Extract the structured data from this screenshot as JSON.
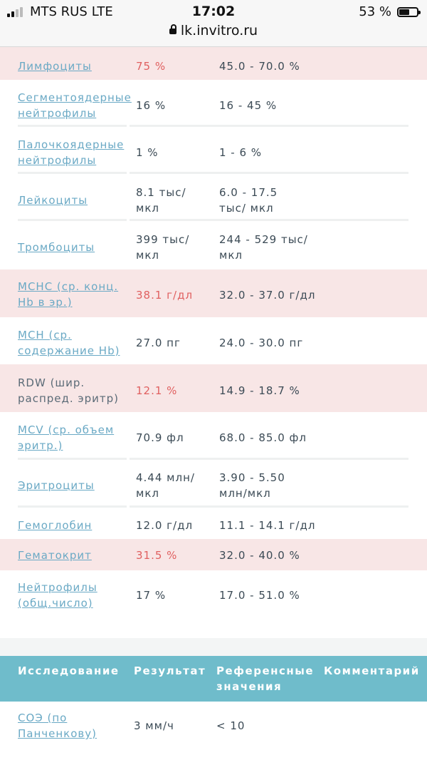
{
  "status_bar": {
    "carrier": "MTS RUS",
    "network": "LTE",
    "time": "17:02",
    "battery": "53 %",
    "url": "lk.invitro.ru"
  },
  "results": [
    {
      "name": "Лимфоциты",
      "result": "75 %",
      "reference": "45.0 - 70.0 %",
      "abnormal": true,
      "link": true
    },
    {
      "name": "Сегментоядерные нейтрофилы",
      "result": "16 %",
      "reference": "16 - 45 %",
      "abnormal": false,
      "link": true
    },
    {
      "name": "Палочкоядерные нейтрофилы",
      "result": "1 %",
      "reference": "1 - 6 %",
      "abnormal": false,
      "link": true
    },
    {
      "name": "Лейкоциты",
      "result": "8.1 тыс/ мкл",
      "reference": "6.0 - 17.5 тыс/ мкл",
      "abnormal": false,
      "link": true
    },
    {
      "name": "Тромбоциты",
      "result": "399 тыс/ мкл",
      "reference": "244 - 529 тыс/ мкл",
      "abnormal": false,
      "link": true
    },
    {
      "name": "MCHC (ср. конц. Hb в эр.)",
      "result": "38.1 г/дл",
      "reference": "32.0 - 37.0 г/дл",
      "abnormal": true,
      "link": true
    },
    {
      "name": "MCH (ср. содержание Hb)",
      "result": "27.0 пг",
      "reference": "24.0 - 30.0 пг",
      "abnormal": false,
      "link": true
    },
    {
      "name": "RDW (шир. распред. эритр)",
      "result": "12.1 %",
      "reference": "14.9 - 18.7 %",
      "abnormal": true,
      "link": false
    },
    {
      "name": "MCV (ср. объем эритр.)",
      "result": "70.9 фл",
      "reference": "68.0 - 85.0 фл",
      "abnormal": false,
      "link": true
    },
    {
      "name": "Эритроциты",
      "result": "4.44 млн/ мкл",
      "reference": "3.90 - 5.50 млн/мкл",
      "abnormal": false,
      "link": true
    },
    {
      "name": "Гемоглобин",
      "result": "12.0 г/дл",
      "reference": "11.1 - 14.1 г/дл",
      "abnormal": false,
      "link": true
    },
    {
      "name": "Гематокрит",
      "result": "31.5 %",
      "reference": "32.0 - 40.0 %",
      "abnormal": true,
      "link": true
    },
    {
      "name": "Нейтрофилы (общ.число)",
      "result": "17 %",
      "reference": "17.0 - 51.0 %",
      "abnormal": false,
      "link": true
    }
  ],
  "table2": {
    "headers": [
      "Исследование",
      "Результат",
      "Референсные значения",
      "Комментарий"
    ],
    "row": {
      "name": "СОЭ (по Панченкову)",
      "result": "3 мм/ч",
      "reference": "< 10",
      "comment": ""
    }
  },
  "colors": {
    "header_bg": "#6fbccb",
    "abnormal_row_bg": "#f8e6e6",
    "abnormal_text": "#e06060",
    "link": "#6aa9c5"
  }
}
